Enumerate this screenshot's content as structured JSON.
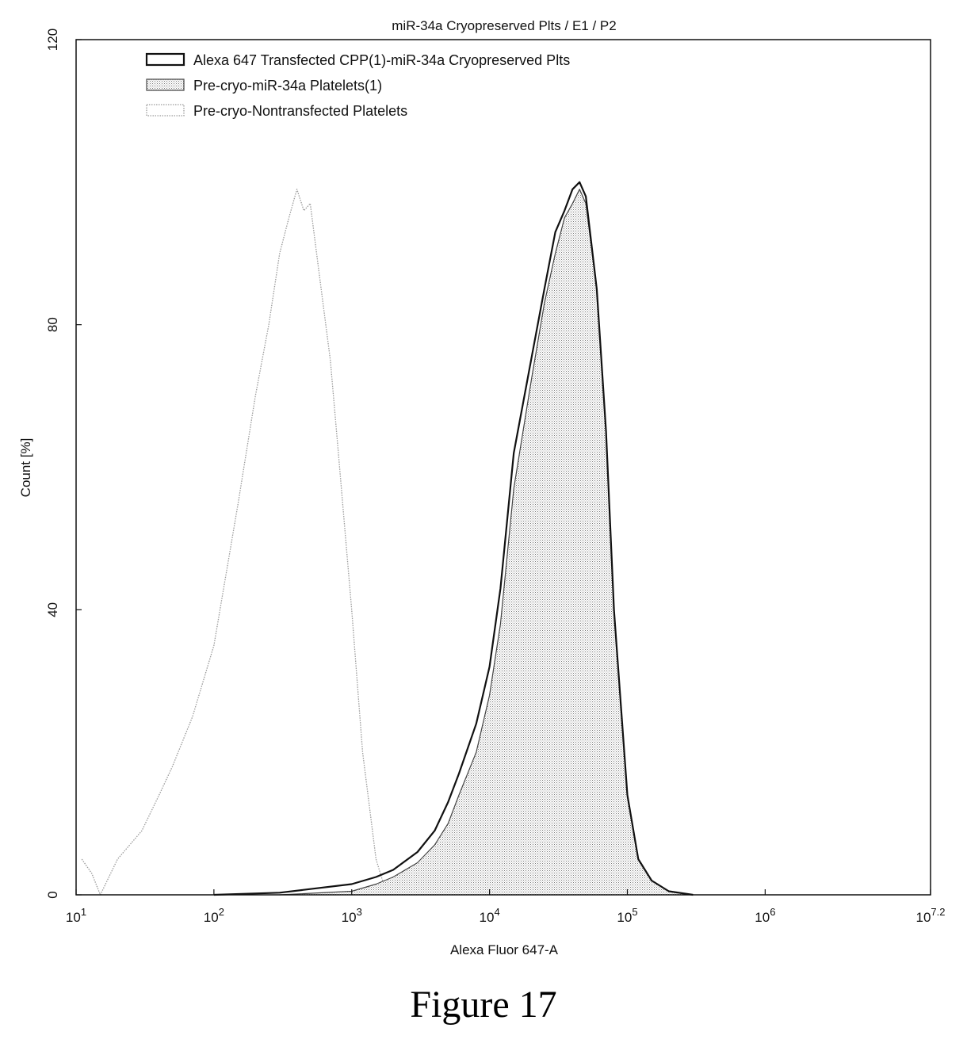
{
  "chart_data": {
    "type": "area",
    "title": "miR-34a Cryopreserved Plts / E1 / P2",
    "xlabel": "Alexa Fluor 647-A",
    "ylabel": "Count [%]",
    "xscale": "log",
    "xlim": [
      10,
      15848932
    ],
    "ylim": [
      0,
      120
    ],
    "x_ticks": [
      {
        "value": 10,
        "base": "10",
        "exp": "1"
      },
      {
        "value": 100,
        "base": "10",
        "exp": "2"
      },
      {
        "value": 1000,
        "base": "10",
        "exp": "3"
      },
      {
        "value": 10000,
        "base": "10",
        "exp": "4"
      },
      {
        "value": 100000,
        "base": "10",
        "exp": "5"
      },
      {
        "value": 1000000,
        "base": "10",
        "exp": "6"
      },
      {
        "value": 15848932,
        "base": "10",
        "exp": "7.2"
      }
    ],
    "y_ticks": [
      {
        "value": 0,
        "label": "0"
      },
      {
        "value": 40,
        "label": "40"
      },
      {
        "value": 80,
        "label": "80"
      },
      {
        "value": 120,
        "label": "120"
      }
    ],
    "grid": false,
    "legend_position": "top-left",
    "series": [
      {
        "name": "Alexa 647 Transfected CPP(1)-miR-34a Cryopreserved Plts",
        "color": "#111111",
        "fill": "none",
        "style": "solid-thick",
        "x": [
          100,
          300,
          1000,
          1500,
          2000,
          3000,
          4000,
          5000,
          6000,
          8000,
          10000,
          12000,
          15000,
          20000,
          25000,
          30000,
          35000,
          40000,
          45000,
          50000,
          60000,
          70000,
          80000,
          100000,
          120000,
          150000,
          200000,
          300000
        ],
        "y": [
          0,
          0.3,
          1.5,
          2.5,
          3.5,
          6,
          9,
          13,
          17,
          24,
          32,
          43,
          62,
          75,
          85,
          93,
          96,
          99,
          100,
          98,
          85,
          65,
          40,
          14,
          5,
          2,
          0.5,
          0
        ]
      },
      {
        "name": "Pre-cryo-miR-34a Platelets(1)",
        "color": "#444444",
        "fill": "stipple",
        "style": "solid-thin",
        "x": [
          300,
          1000,
          1500,
          2000,
          3000,
          4000,
          5000,
          6000,
          8000,
          10000,
          12000,
          15000,
          20000,
          25000,
          30000,
          35000,
          40000,
          45000,
          50000,
          60000,
          70000,
          80000,
          100000,
          120000,
          150000,
          200000,
          300000
        ],
        "y": [
          0,
          0.5,
          1.5,
          2.5,
          4.5,
          7,
          10,
          14,
          20,
          28,
          38,
          57,
          72,
          83,
          90,
          95,
          97,
          99,
          97,
          85,
          65,
          40,
          14,
          5,
          2,
          0.5,
          0
        ]
      },
      {
        "name": "Pre-cryo-Nontransfected Platelets",
        "color": "#9a9a9a",
        "fill": "none",
        "style": "dotted",
        "x": [
          11,
          13,
          15,
          20,
          30,
          40,
          50,
          70,
          100,
          150,
          200,
          250,
          300,
          350,
          400,
          450,
          500,
          600,
          700,
          800,
          1000,
          1200,
          1500,
          1800
        ],
        "y": [
          5,
          3,
          0,
          5,
          9,
          14,
          18,
          25,
          35,
          55,
          70,
          80,
          90,
          95,
          99,
          96,
          97,
          85,
          75,
          62,
          40,
          20,
          5,
          0
        ]
      }
    ]
  },
  "caption": "Figure 17"
}
